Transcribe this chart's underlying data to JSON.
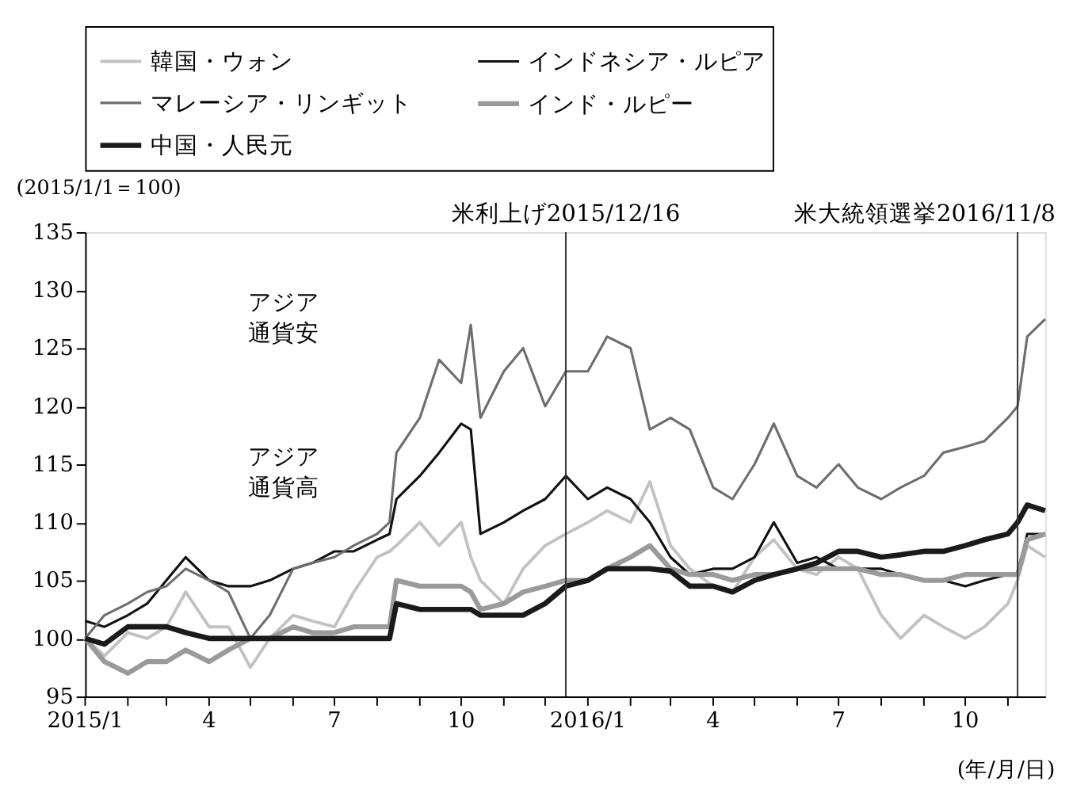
{
  "chart_data": {
    "type": "line",
    "ylabel": "(2015/1/1＝100)",
    "xlabel": "(年/月/日)",
    "x": [
      "2015-01-01",
      "2015-01-15",
      "2015-02-01",
      "2015-02-15",
      "2015-03-01",
      "2015-03-15",
      "2015-04-01",
      "2015-04-15",
      "2015-05-01",
      "2015-05-15",
      "2015-06-01",
      "2015-06-15",
      "2015-07-01",
      "2015-07-15",
      "2015-08-01",
      "2015-08-10",
      "2015-08-15",
      "2015-09-01",
      "2015-09-15",
      "2015-10-01",
      "2015-10-08",
      "2015-10-15",
      "2015-11-01",
      "2015-11-15",
      "2015-12-01",
      "2015-12-16",
      "2016-01-01",
      "2016-01-15",
      "2016-02-01",
      "2016-02-15",
      "2016-03-01",
      "2016-03-15",
      "2016-04-01",
      "2016-04-15",
      "2016-05-01",
      "2016-05-15",
      "2016-06-01",
      "2016-06-15",
      "2016-07-01",
      "2016-07-15",
      "2016-08-01",
      "2016-08-15",
      "2016-09-01",
      "2016-09-15",
      "2016-10-01",
      "2016-10-15",
      "2016-11-01",
      "2016-11-08",
      "2016-11-15",
      "2016-11-28"
    ],
    "series": [
      {
        "name": "韓国・ウォン",
        "color": "#c2c2c2",
        "values": [
          100,
          98.5,
          100.5,
          100,
          101,
          104,
          101,
          101,
          97.5,
          100,
          102,
          101.5,
          101,
          104,
          107,
          107.5,
          108,
          110,
          108,
          110,
          107,
          105,
          103,
          106,
          108,
          109,
          110,
          111,
          110,
          113.5,
          108,
          106,
          104.5,
          104,
          107,
          108.5,
          106,
          105.5,
          107,
          106,
          102,
          100,
          102,
          101,
          100,
          101,
          103,
          105,
          108,
          107
        ]
      },
      {
        "name": "インドネシア・ルピア",
        "color": "#111111",
        "values": [
          101.5,
          101,
          102,
          103,
          105,
          107,
          105,
          104.5,
          104.5,
          105,
          106,
          106.5,
          107.5,
          107.5,
          108.5,
          109,
          112,
          114,
          116,
          118.5,
          118,
          109,
          110,
          111,
          112,
          114,
          112,
          113,
          112,
          110,
          107,
          105.5,
          106,
          106,
          107,
          110,
          106.5,
          107,
          106,
          106,
          106,
          105.5,
          105,
          105,
          104.5,
          105,
          105.5,
          105.5,
          109,
          109
        ]
      },
      {
        "name": "マレーシア・リンギット",
        "color": "#6e6e6e",
        "values": [
          100,
          102,
          103,
          104,
          104.5,
          106,
          105,
          104,
          100,
          102,
          106,
          106.5,
          107,
          108,
          109,
          110,
          116,
          119,
          124,
          122,
          127,
          119,
          123,
          125,
          120,
          123,
          123,
          126,
          125,
          118,
          119,
          118,
          113,
          112,
          115,
          118.5,
          114,
          113,
          115,
          113,
          112,
          113,
          114,
          116,
          116.5,
          117,
          119,
          120,
          126,
          127.5
        ]
      },
      {
        "name": "インド・ルピー",
        "color": "#9a9a9a",
        "values": [
          100,
          98,
          97,
          98,
          98,
          99,
          98,
          99,
          100,
          100,
          101,
          100.5,
          100.5,
          101,
          101,
          101,
          105,
          104.5,
          104.5,
          104.5,
          104,
          102.5,
          103,
          104,
          104.5,
          105,
          105,
          106,
          107,
          108,
          106,
          105.5,
          105.5,
          105,
          105.5,
          105.5,
          106,
          106,
          106,
          106,
          105.5,
          105.5,
          105,
          105,
          105.5,
          105.5,
          105.5,
          105.5,
          108.5,
          109
        ]
      },
      {
        "name": "中国・人民元",
        "color": "#1a1a1a",
        "values": [
          100,
          99.5,
          101,
          101,
          101,
          100.5,
          100,
          100,
          100,
          100,
          100,
          100,
          100,
          100,
          100,
          100,
          103,
          102.5,
          102.5,
          102.5,
          102.5,
          102,
          102,
          102,
          103,
          104.5,
          105,
          106,
          106,
          106,
          105.8,
          104.5,
          104.5,
          104,
          105,
          105.5,
          106,
          106.5,
          107.5,
          107.5,
          107,
          107.2,
          107.5,
          107.5,
          108,
          108.5,
          109,
          110,
          111.5,
          111
        ]
      }
    ],
    "xlim": [
      "2015-01-01",
      "2016-11-28"
    ],
    "xticks": [
      {
        "value": "2015-01-01",
        "label": "2015/1"
      },
      {
        "value": "2015-02-01",
        "label": null
      },
      {
        "value": "2015-03-01",
        "label": null
      },
      {
        "value": "2015-04-01",
        "label": "4"
      },
      {
        "value": "2015-05-01",
        "label": null
      },
      {
        "value": "2015-06-01",
        "label": null
      },
      {
        "value": "2015-07-01",
        "label": "7"
      },
      {
        "value": "2015-08-01",
        "label": null
      },
      {
        "value": "2015-09-01",
        "label": null
      },
      {
        "value": "2015-10-01",
        "label": "10"
      },
      {
        "value": "2015-11-01",
        "label": null
      },
      {
        "value": "2015-12-01",
        "label": null
      },
      {
        "value": "2016-01-01",
        "label": "2016/1"
      },
      {
        "value": "2016-02-01",
        "label": null
      },
      {
        "value": "2016-03-01",
        "label": null
      },
      {
        "value": "2016-04-01",
        "label": "4"
      },
      {
        "value": "2016-05-01",
        "label": null
      },
      {
        "value": "2016-06-01",
        "label": null
      },
      {
        "value": "2016-07-01",
        "label": "7"
      },
      {
        "value": "2016-08-01",
        "label": null
      },
      {
        "value": "2016-09-01",
        "label": null
      },
      {
        "value": "2016-10-01",
        "label": "10"
      },
      {
        "value": "2016-11-01",
        "label": null
      }
    ],
    "ylim": [
      95,
      135
    ],
    "yticks": [
      95,
      100,
      105,
      110,
      115,
      120,
      125,
      130,
      135
    ],
    "ref_lines": [
      {
        "axis": "x",
        "value": "2015-12-16",
        "label": "米利上げ2015/12/16",
        "color": "#333333"
      },
      {
        "axis": "x",
        "value": "2016-11-08",
        "label": "米大統領選挙2016/11/8",
        "color": "#333333"
      }
    ],
    "annotations": [
      "アジア通貨安",
      "アジア通貨高"
    ],
    "grid": false,
    "legend": "top",
    "marker": "none",
    "line_style": "solid"
  }
}
